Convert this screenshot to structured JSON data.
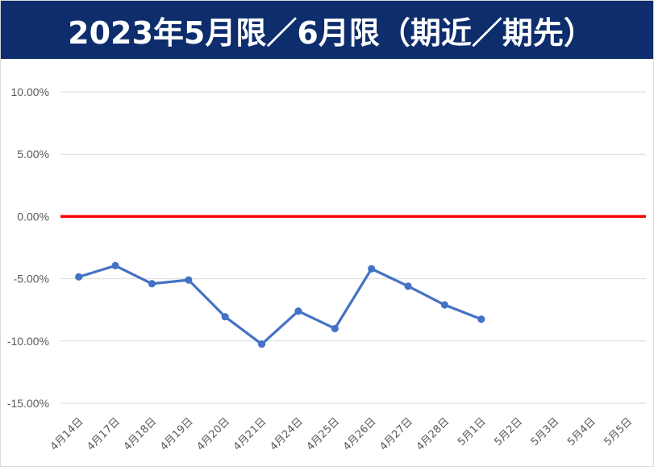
{
  "chart_data": {
    "type": "line",
    "title": "2023年5月限／6月限（期近／期先）",
    "categories": [
      "4月14日",
      "4月17日",
      "4月18日",
      "4月19日",
      "4月20日",
      "4月21日",
      "4月24日",
      "4月25日",
      "4月26日",
      "4月27日",
      "4月28日",
      "5月1日",
      "5月2日",
      "5月3日",
      "5月4日",
      "5月5日"
    ],
    "series": [
      {
        "values": [
          -4.85,
          -3.95,
          -5.4,
          -5.1,
          -8.05,
          -10.25,
          -7.6,
          -9.0,
          -4.2,
          -5.6,
          -7.1,
          -8.25,
          null,
          null,
          null,
          null
        ],
        "color": "#4472c4"
      }
    ],
    "reference_line": {
      "value": 0.0,
      "color": "#ff0000"
    },
    "y_ticks": [
      "10.00%",
      "5.00%",
      "0.00%",
      "-5.00%",
      "-10.00%",
      "-15.00%"
    ],
    "ylim": [
      -15,
      10
    ],
    "grid": true,
    "xlabel": "",
    "ylabel": ""
  }
}
